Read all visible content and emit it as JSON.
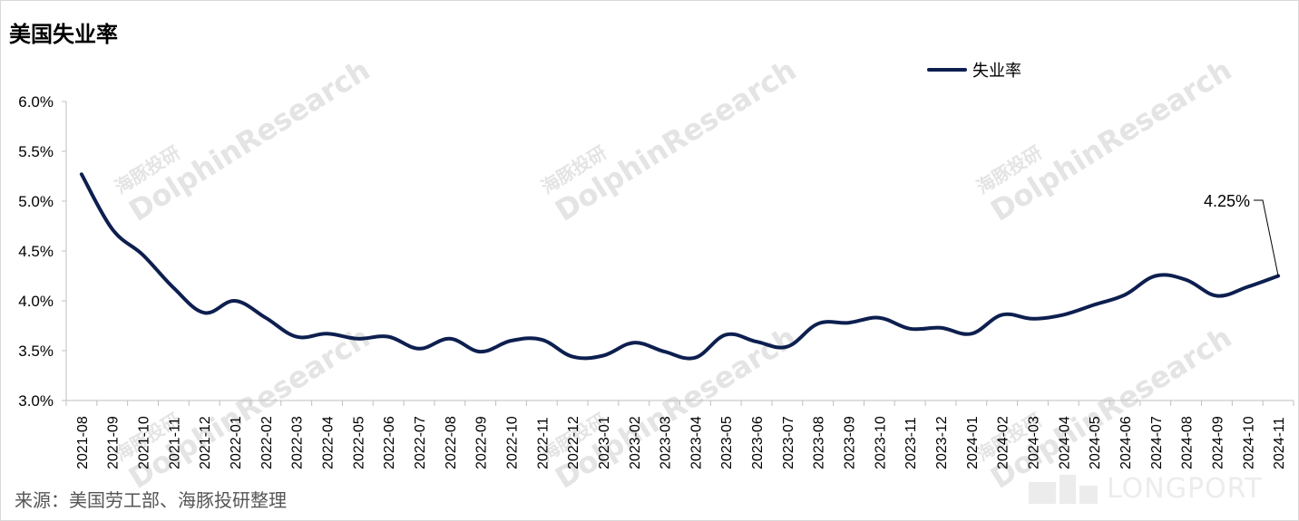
{
  "title": "美国失业率",
  "source": "来源：美国劳工部、海豚投研整理",
  "watermark": {
    "cn": "海豚投研",
    "en": "DolphinResearch",
    "brand": "LONGPORT"
  },
  "colors": {
    "line": "#0d1f4f",
    "axis": "#bfbfbf",
    "text": "#000000"
  },
  "chart_data": {
    "type": "line",
    "title": "美国失业率",
    "categories": [
      "2021-08",
      "2021-09",
      "2021-10",
      "2021-11",
      "2021-12",
      "2022-01",
      "2022-02",
      "2022-03",
      "2022-04",
      "2022-05",
      "2022-06",
      "2022-07",
      "2022-08",
      "2022-09",
      "2022-10",
      "2022-11",
      "2022-12",
      "2023-01",
      "2023-02",
      "2023-03",
      "2023-04",
      "2023-05",
      "2023-06",
      "2023-07",
      "2023-08",
      "2023-09",
      "2023-10",
      "2023-11",
      "2023-12",
      "2024-01",
      "2024-02",
      "2024-03",
      "2024-04",
      "2024-05",
      "2024-06",
      "2024-07",
      "2024-08",
      "2024-09",
      "2024-10",
      "2024-11"
    ],
    "series": [
      {
        "name": "失业率",
        "values": [
          5.27,
          4.72,
          4.46,
          4.13,
          3.88,
          4.0,
          3.83,
          3.64,
          3.67,
          3.62,
          3.64,
          3.52,
          3.62,
          3.49,
          3.6,
          3.61,
          3.44,
          3.45,
          3.58,
          3.49,
          3.43,
          3.66,
          3.59,
          3.54,
          3.77,
          3.78,
          3.83,
          3.72,
          3.73,
          3.67,
          3.86,
          3.82,
          3.86,
          3.96,
          4.06,
          4.25,
          4.21,
          4.05,
          4.14,
          4.25
        ]
      }
    ],
    "y_ticks": [
      "3.0%",
      "3.5%",
      "4.0%",
      "4.5%",
      "5.0%",
      "5.5%",
      "6.0%"
    ],
    "ylim": [
      3.0,
      6.0
    ],
    "annotation": {
      "text": "4.25%",
      "index": 39
    },
    "legend_position": "top-right",
    "grid": false
  }
}
